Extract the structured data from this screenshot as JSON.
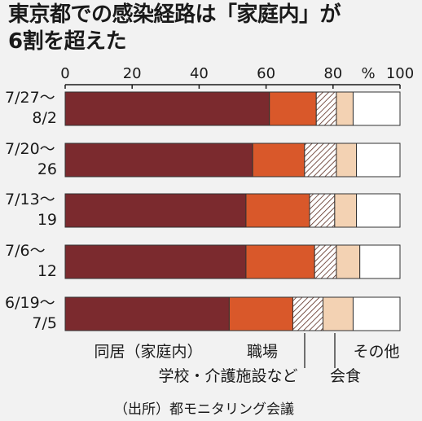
{
  "title_lines": [
    "東京都での感染経路は「家庭内」が",
    "6割を超えた"
  ],
  "source": "（出所）都モニタリング会議",
  "colors": {
    "home": "#7b2a2e",
    "work": "#d9582a",
    "school": "hatch",
    "dining": "#f3d2b3",
    "other": "#ffffff",
    "outline": "#333333"
  },
  "chart_data": {
    "type": "bar",
    "orientation": "horizontal",
    "stacked": true,
    "unit": "%",
    "xlim": [
      0,
      100
    ],
    "xticks": [
      0,
      20,
      40,
      60,
      80,
      100
    ],
    "categories": [
      [
        "7/27〜",
        "8/2"
      ],
      [
        "7/20〜",
        "26"
      ],
      [
        "7/13〜",
        "19"
      ],
      [
        "7/6〜",
        "12"
      ],
      [
        "6/19〜",
        "7/5"
      ]
    ],
    "series": [
      {
        "name": "同居（家庭内）",
        "key": "home",
        "values": [
          61,
          56,
          54,
          54,
          49
        ]
      },
      {
        "name": "職場",
        "key": "work",
        "values": [
          14,
          15.5,
          19,
          20.5,
          19
        ]
      },
      {
        "name": "学校・介護施設など",
        "key": "school",
        "values": [
          6,
          9.5,
          7.5,
          6.5,
          9
        ]
      },
      {
        "name": "会食",
        "key": "dining",
        "values": [
          5,
          6,
          6.5,
          7,
          9
        ]
      },
      {
        "name": "その他",
        "key": "other",
        "values": [
          14,
          13,
          13,
          12,
          14
        ]
      }
    ]
  }
}
